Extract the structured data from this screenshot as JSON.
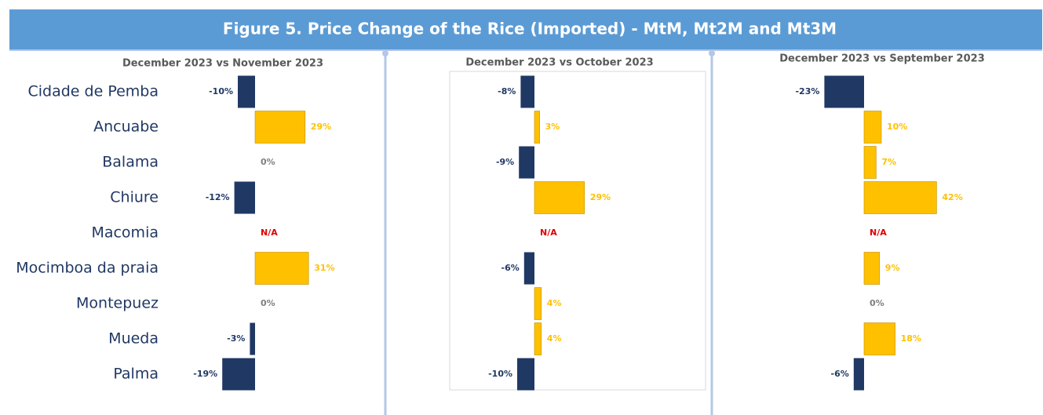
{
  "title": "Figure 5. Price Change of the Rice (Imported) - MtM, Mt2M and Mt3M",
  "categories": [
    "Cidade de Pemba",
    "Ancuabe",
    "Balama",
    "Chiure",
    "Macomia",
    "Mocimboa da praia",
    "Montepuez",
    "Mueda",
    "Palma"
  ],
  "chart_data": [
    {
      "type": "bar",
      "subtitle": "December 2023 vs November 2023",
      "values": [
        -10,
        29,
        0,
        -12,
        null,
        31,
        0,
        -3,
        -19
      ],
      "value_labels": [
        "-10%",
        "29%",
        "0%",
        "-12%",
        "N/A",
        "31%",
        "0%",
        "-3%",
        "-19%"
      ],
      "colors": {
        "negative": "#203864",
        "positive": "#ffc000"
      }
    },
    {
      "type": "bar",
      "subtitle": "December 2023 vs October 2023",
      "values": [
        -8,
        3,
        -9,
        29,
        null,
        -6,
        4,
        4,
        -10
      ],
      "value_labels": [
        "-8%",
        "3%",
        "-9%",
        "29%",
        "N/A",
        "-6%",
        "4%",
        "4%",
        "-10%"
      ],
      "colors": {
        "negative": "#203864",
        "positive": "#ffc000"
      }
    },
    {
      "type": "bar",
      "subtitle": "December 2023 vs September 2023",
      "values": [
        -23,
        10,
        7,
        42,
        null,
        9,
        0,
        18,
        -6
      ],
      "value_labels": [
        "-23%",
        "10%",
        "7%",
        "42%",
        "N/A",
        "9%",
        "0%",
        "18%",
        "-6%"
      ],
      "colors": {
        "negative": "#203864",
        "positive": "#ffc000"
      }
    }
  ]
}
